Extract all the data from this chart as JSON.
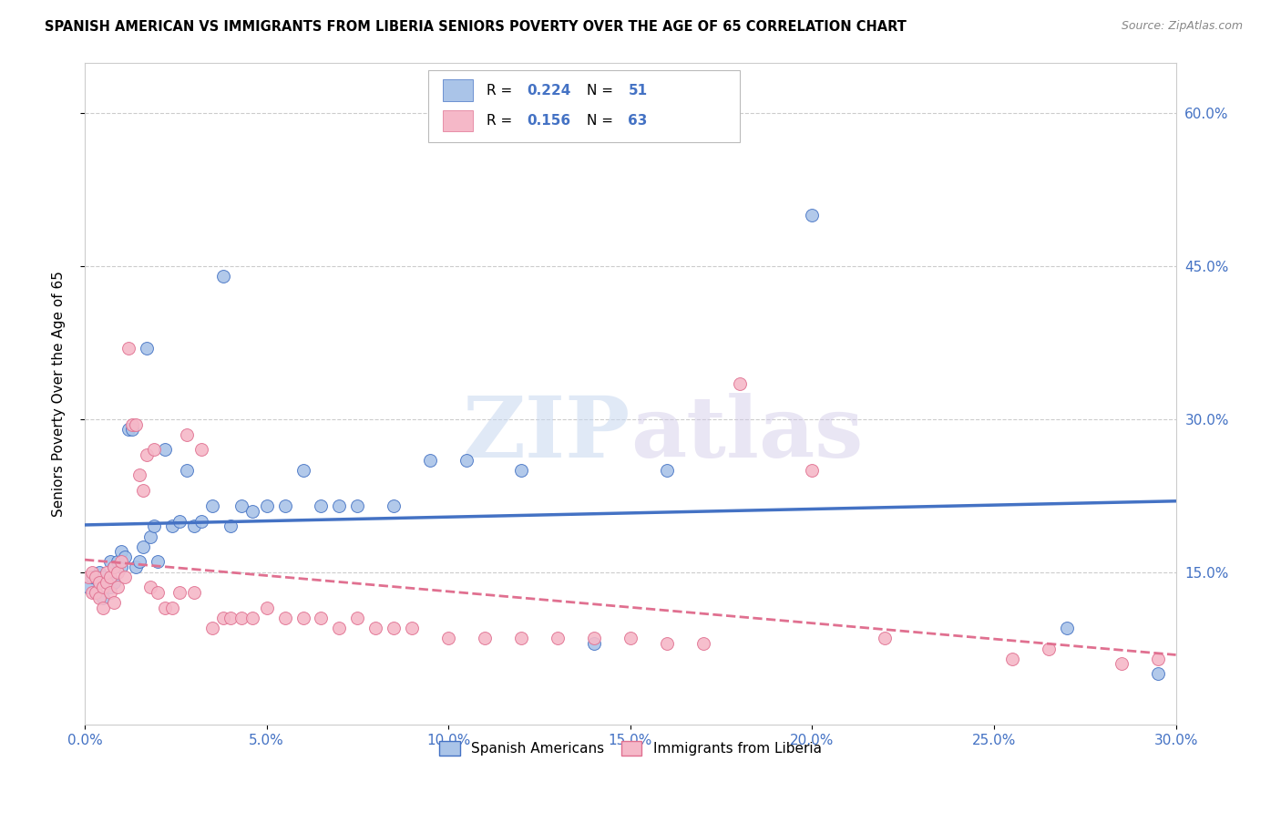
{
  "title": "SPANISH AMERICAN VS IMMIGRANTS FROM LIBERIA SENIORS POVERTY OVER THE AGE OF 65 CORRELATION CHART",
  "source": "Source: ZipAtlas.com",
  "ylabel": "Seniors Poverty Over the Age of 65",
  "watermark_zip": "ZIP",
  "watermark_atlas": "atlas",
  "xlim": [
    0.0,
    0.3
  ],
  "ylim": [
    0.0,
    0.65
  ],
  "xtick_vals": [
    0.0,
    0.05,
    0.1,
    0.15,
    0.2,
    0.25,
    0.3
  ],
  "xtick_labels": [
    "0.0%",
    "5.0%",
    "10.0%",
    "15.0%",
    "20.0%",
    "25.0%",
    "30.0%"
  ],
  "ytick_vals": [
    0.15,
    0.3,
    0.45,
    0.6
  ],
  "ytick_labels": [
    "15.0%",
    "30.0%",
    "45.0%",
    "60.0%"
  ],
  "series1_color": "#aac4e8",
  "series1_edge_color": "#4472c4",
  "series2_color": "#f5b8c8",
  "series2_edge_color": "#e07090",
  "trend1_color": "#4472c4",
  "trend2_color": "#e07090",
  "legend_label1": "Spanish Americans",
  "legend_label2": "Immigrants from Liberia",
  "R1": 0.224,
  "N1": 51,
  "R2": 0.156,
  "N2": 63,
  "label_color": "#4472c4",
  "background_color": "#ffffff",
  "grid_color": "#cccccc",
  "series1_x": [
    0.001,
    0.002,
    0.003,
    0.004,
    0.004,
    0.005,
    0.005,
    0.006,
    0.007,
    0.007,
    0.008,
    0.008,
    0.009,
    0.01,
    0.01,
    0.011,
    0.012,
    0.013,
    0.014,
    0.015,
    0.016,
    0.017,
    0.018,
    0.019,
    0.02,
    0.022,
    0.024,
    0.026,
    0.028,
    0.03,
    0.032,
    0.035,
    0.038,
    0.04,
    0.043,
    0.046,
    0.05,
    0.055,
    0.06,
    0.065,
    0.07,
    0.075,
    0.085,
    0.095,
    0.105,
    0.12,
    0.14,
    0.16,
    0.2,
    0.27,
    0.295
  ],
  "series1_y": [
    0.135,
    0.145,
    0.13,
    0.14,
    0.15,
    0.125,
    0.145,
    0.14,
    0.16,
    0.135,
    0.14,
    0.155,
    0.16,
    0.155,
    0.17,
    0.165,
    0.29,
    0.29,
    0.155,
    0.16,
    0.175,
    0.37,
    0.185,
    0.195,
    0.16,
    0.27,
    0.195,
    0.2,
    0.25,
    0.195,
    0.2,
    0.215,
    0.44,
    0.195,
    0.215,
    0.21,
    0.215,
    0.215,
    0.25,
    0.215,
    0.215,
    0.215,
    0.215,
    0.26,
    0.26,
    0.25,
    0.08,
    0.25,
    0.5,
    0.095,
    0.05
  ],
  "series2_x": [
    0.001,
    0.002,
    0.002,
    0.003,
    0.003,
    0.004,
    0.004,
    0.005,
    0.005,
    0.006,
    0.006,
    0.007,
    0.007,
    0.008,
    0.008,
    0.009,
    0.009,
    0.01,
    0.011,
    0.012,
    0.013,
    0.014,
    0.015,
    0.016,
    0.017,
    0.018,
    0.019,
    0.02,
    0.022,
    0.024,
    0.026,
    0.028,
    0.03,
    0.032,
    0.035,
    0.038,
    0.04,
    0.043,
    0.046,
    0.05,
    0.055,
    0.06,
    0.065,
    0.07,
    0.075,
    0.08,
    0.085,
    0.09,
    0.1,
    0.11,
    0.12,
    0.13,
    0.14,
    0.15,
    0.16,
    0.17,
    0.18,
    0.2,
    0.22,
    0.255,
    0.265,
    0.285,
    0.295
  ],
  "series2_y": [
    0.145,
    0.13,
    0.15,
    0.13,
    0.145,
    0.125,
    0.14,
    0.115,
    0.135,
    0.14,
    0.15,
    0.13,
    0.145,
    0.12,
    0.155,
    0.135,
    0.15,
    0.16,
    0.145,
    0.37,
    0.295,
    0.295,
    0.245,
    0.23,
    0.265,
    0.135,
    0.27,
    0.13,
    0.115,
    0.115,
    0.13,
    0.285,
    0.13,
    0.27,
    0.095,
    0.105,
    0.105,
    0.105,
    0.105,
    0.115,
    0.105,
    0.105,
    0.105,
    0.095,
    0.105,
    0.095,
    0.095,
    0.095,
    0.085,
    0.085,
    0.085,
    0.085,
    0.085,
    0.085,
    0.08,
    0.08,
    0.335,
    0.25,
    0.085,
    0.065,
    0.075,
    0.06,
    0.065
  ]
}
